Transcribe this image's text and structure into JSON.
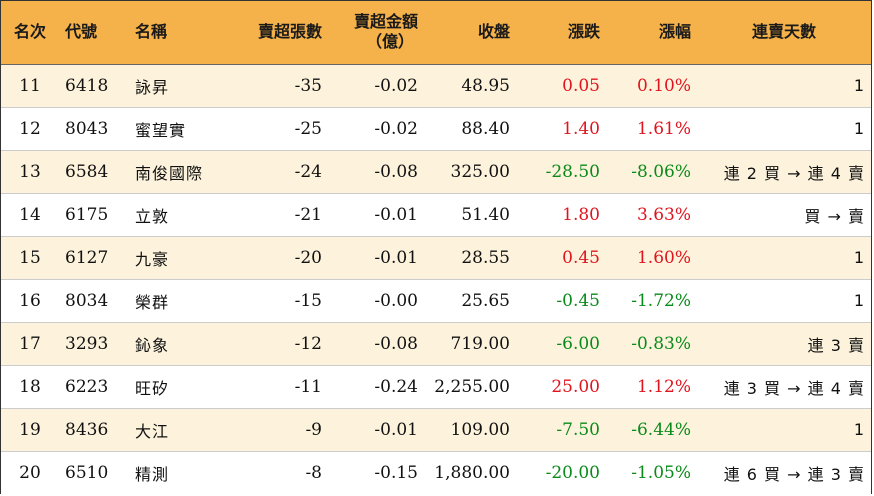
{
  "headers": {
    "rank": "名次",
    "code": "代號",
    "name": "名稱",
    "net_sell_lots": "賣超張數",
    "net_sell_amount": "賣超金額",
    "net_sell_amount_unit": "（億）",
    "close": "收盤",
    "change": "漲跌",
    "pct": "漲幅",
    "streak": "連賣天數"
  },
  "colors": {
    "header_bg": "#f5b24a",
    "stripe_bg": "#fdf3dc",
    "up": "#e0141e",
    "down": "#0a8a1a"
  },
  "rows": [
    {
      "rank": "11",
      "code": "6418",
      "name": "詠昇",
      "lots": "-35",
      "amount": "-0.02",
      "close": "48.95",
      "change": "0.05",
      "pct": "0.10%",
      "dir": "up",
      "streak": "1"
    },
    {
      "rank": "12",
      "code": "8043",
      "name": "蜜望實",
      "lots": "-25",
      "amount": "-0.02",
      "close": "88.40",
      "change": "1.40",
      "pct": "1.61%",
      "dir": "up",
      "streak": "1"
    },
    {
      "rank": "13",
      "code": "6584",
      "name": "南俊國際",
      "lots": "-24",
      "amount": "-0.08",
      "close": "325.00",
      "change": "-28.50",
      "pct": "-8.06%",
      "dir": "down",
      "streak": "連 2 買 → 連 4 賣"
    },
    {
      "rank": "14",
      "code": "6175",
      "name": "立敦",
      "lots": "-21",
      "amount": "-0.01",
      "close": "51.40",
      "change": "1.80",
      "pct": "3.63%",
      "dir": "up",
      "streak": "買 → 賣"
    },
    {
      "rank": "15",
      "code": "6127",
      "name": "九豪",
      "lots": "-20",
      "amount": "-0.01",
      "close": "28.55",
      "change": "0.45",
      "pct": "1.60%",
      "dir": "up",
      "streak": "1"
    },
    {
      "rank": "16",
      "code": "8034",
      "name": "榮群",
      "lots": "-15",
      "amount": "-0.00",
      "close": "25.65",
      "change": "-0.45",
      "pct": "-1.72%",
      "dir": "down",
      "streak": "1"
    },
    {
      "rank": "17",
      "code": "3293",
      "name": "鈊象",
      "lots": "-12",
      "amount": "-0.08",
      "close": "719.00",
      "change": "-6.00",
      "pct": "-0.83%",
      "dir": "down",
      "streak": "連 3 賣"
    },
    {
      "rank": "18",
      "code": "6223",
      "name": "旺矽",
      "lots": "-11",
      "amount": "-0.24",
      "close": "2,255.00",
      "change": "25.00",
      "pct": "1.12%",
      "dir": "up",
      "streak": "連 3 買 → 連 4 賣"
    },
    {
      "rank": "19",
      "code": "8436",
      "name": "大江",
      "lots": "-9",
      "amount": "-0.01",
      "close": "109.00",
      "change": "-7.50",
      "pct": "-6.44%",
      "dir": "down",
      "streak": "1"
    },
    {
      "rank": "20",
      "code": "6510",
      "name": "精測",
      "lots": "-8",
      "amount": "-0.15",
      "close": "1,880.00",
      "change": "-20.00",
      "pct": "-1.05%",
      "dir": "down",
      "streak": "連 6 買 → 連 3 賣"
    }
  ]
}
